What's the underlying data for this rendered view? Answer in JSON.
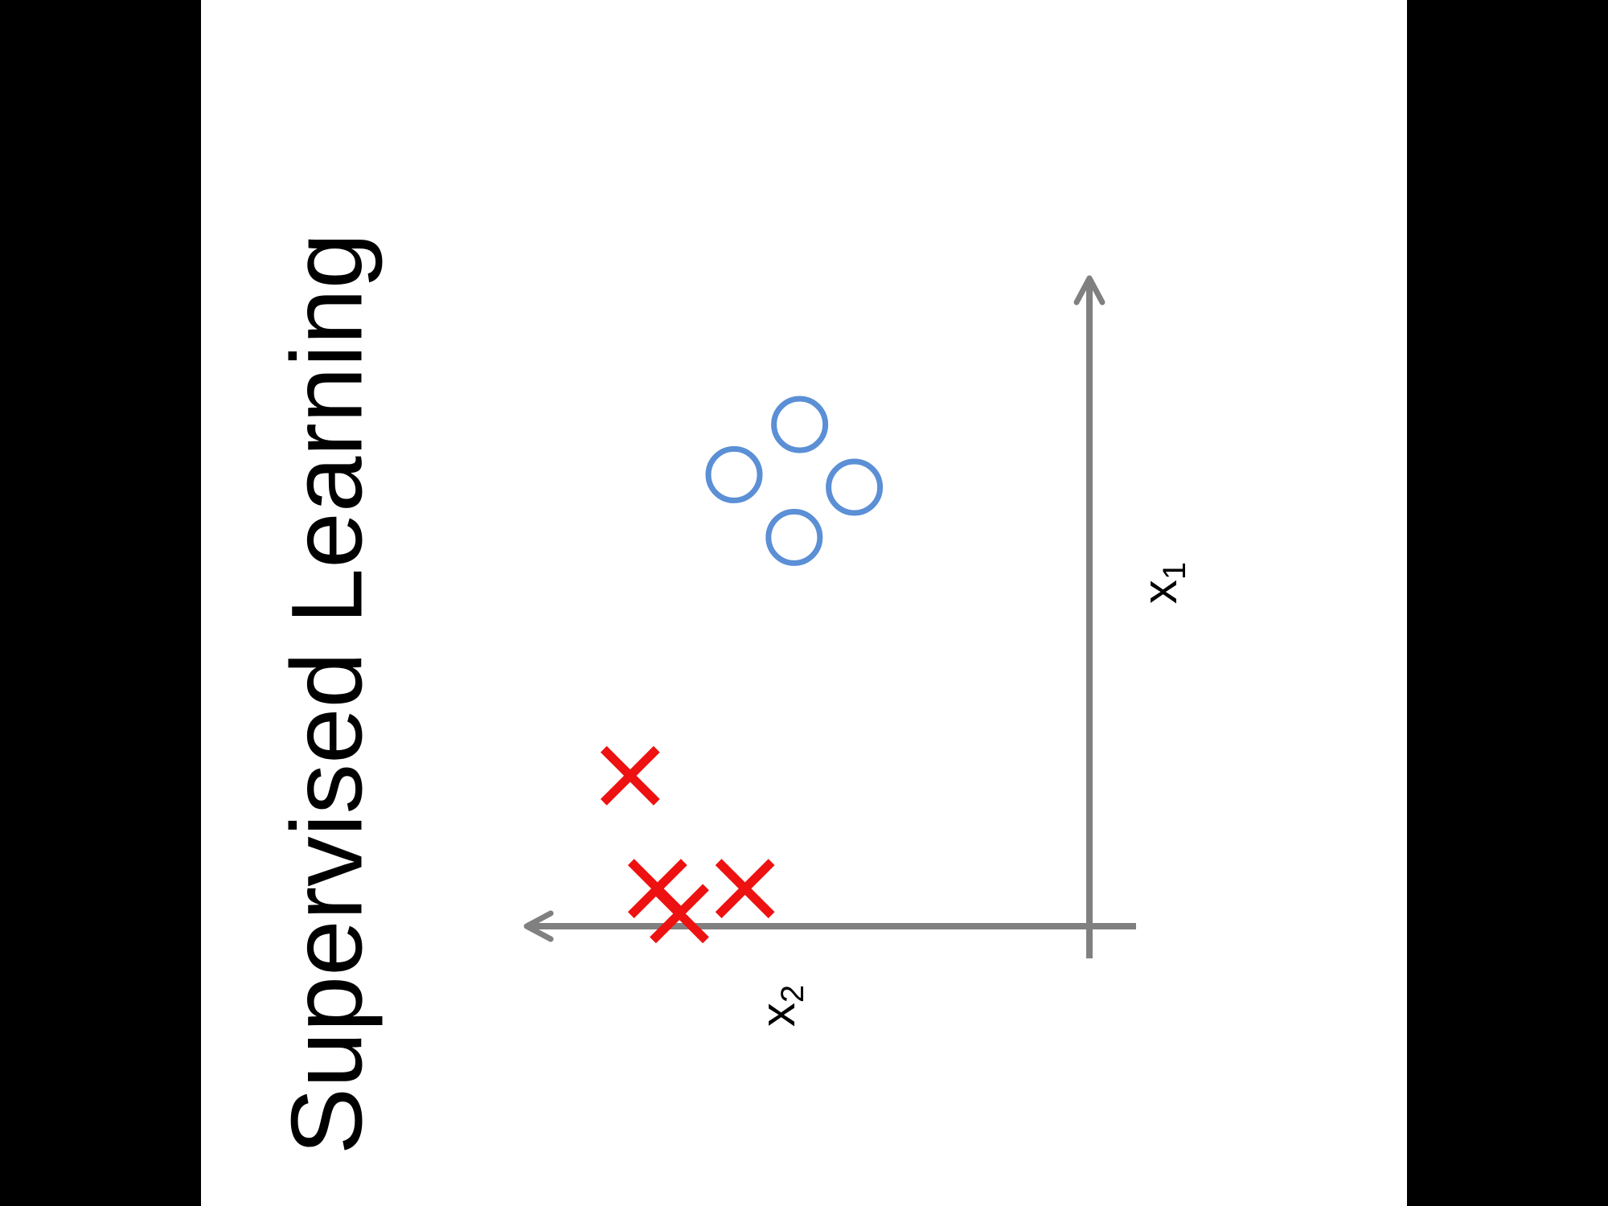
{
  "slide": {
    "title": "Supervised Learning",
    "background_color": "#ffffff",
    "letterbox_color": "#000000",
    "orientation": "rotated-90-counterclockwise"
  },
  "chart_data": {
    "type": "scatter",
    "title": "Supervised Learning",
    "xlabel": "x",
    "xlabel_subscript": "1",
    "ylabel": "x",
    "ylabel_subscript": "2",
    "grid": false,
    "legend": "none",
    "axis_color": "#808080",
    "series": [
      {
        "marker": "x",
        "color": "#ee1111",
        "points": [
          {
            "x": 0.24,
            "y": 0.84
          },
          {
            "x": 0.06,
            "y": 0.79
          },
          {
            "x": 0.06,
            "y": 0.63
          },
          {
            "x": 0.02,
            "y": 0.75
          }
        ]
      },
      {
        "marker": "o",
        "color": "#5b8fd6",
        "points": [
          {
            "x": 0.62,
            "y": 0.54
          },
          {
            "x": 0.7,
            "y": 0.43
          },
          {
            "x": 0.8,
            "y": 0.53
          },
          {
            "x": 0.72,
            "y": 0.65
          }
        ]
      }
    ]
  }
}
